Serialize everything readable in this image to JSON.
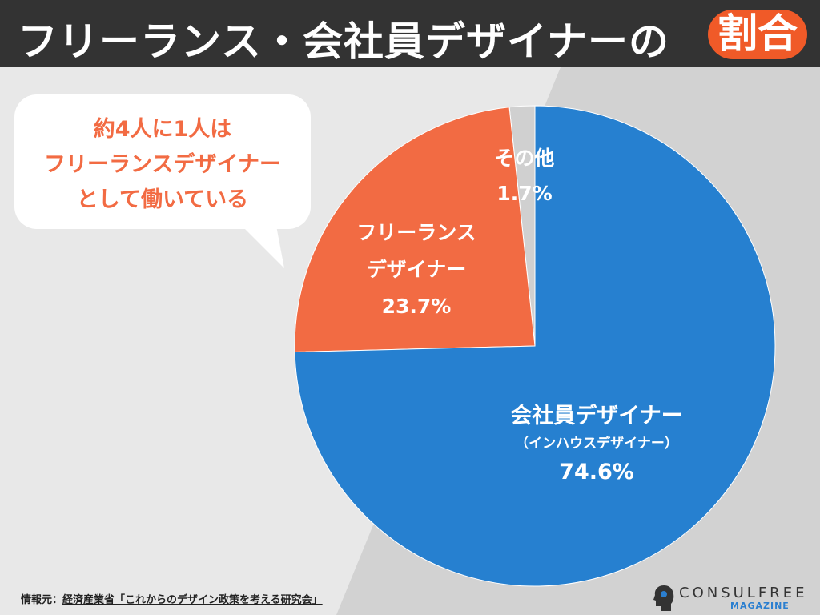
{
  "header": {
    "title": "フリーランス・会社員デザイナーの",
    "title_highlight": "割合"
  },
  "callout": {
    "lines": [
      "約4人に1人は",
      "フリーランスデザイナー",
      "として働いている"
    ]
  },
  "chart_data": {
    "type": "pie",
    "title": "フリーランス・会社員デザイナーの割合",
    "start": "top",
    "direction": "clockwise",
    "slices": [
      {
        "label": "会社員デザイナー",
        "sublabel": "（インハウスデザイナー）",
        "value": 74.6,
        "value_label": "74.6%",
        "color": "#2680d0"
      },
      {
        "label": "フリーランスデザイナー",
        "label_lines": [
          "フリーランス",
          "デザイナー"
        ],
        "value": 23.7,
        "value_label": "23.7%",
        "color": "#f26b43"
      },
      {
        "label": "その他",
        "value": 1.7,
        "value_label": "1.7%",
        "color": "#d0d0d0"
      }
    ]
  },
  "footer": {
    "source_prefix": "情報元：",
    "source_org": "経済産業省",
    "source_title": "「これからのデザイン政策を考える研究会」"
  },
  "logo": {
    "name": "CONSULFREE",
    "sub": "MAGAZINE"
  },
  "colors": {
    "header_bg": "#333333",
    "accent": "#f05a28",
    "blue": "#2680d0"
  }
}
